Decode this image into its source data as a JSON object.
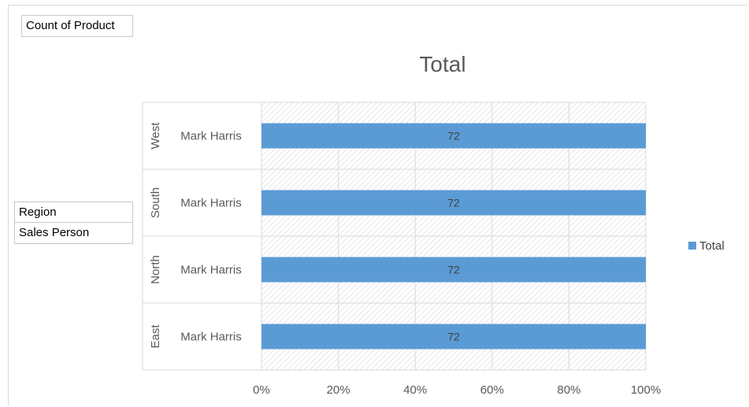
{
  "filters": {
    "values_field": "Count of Product",
    "row_fields": [
      "Region",
      "Sales Person"
    ]
  },
  "colors": {
    "bar": "#5b9bd5",
    "text": "#595959",
    "grid": "#d9d9d9"
  },
  "chart_data": {
    "type": "bar",
    "orientation": "horizontal",
    "stacked": "100%",
    "title": "Total",
    "categories": [
      {
        "outer": "West",
        "inner": "Mark Harris"
      },
      {
        "outer": "South",
        "inner": "Mark Harris"
      },
      {
        "outer": "North",
        "inner": "Mark Harris"
      },
      {
        "outer": "East",
        "inner": "Mark Harris"
      }
    ],
    "series": [
      {
        "name": "Total",
        "values": [
          72,
          72,
          72,
          72
        ],
        "percent": [
          100,
          100,
          100,
          100
        ]
      }
    ],
    "x_ticks": [
      "0%",
      "20%",
      "40%",
      "60%",
      "80%",
      "100%"
    ],
    "xlim": [
      0,
      100
    ],
    "grid": true,
    "legend_position": "right"
  }
}
